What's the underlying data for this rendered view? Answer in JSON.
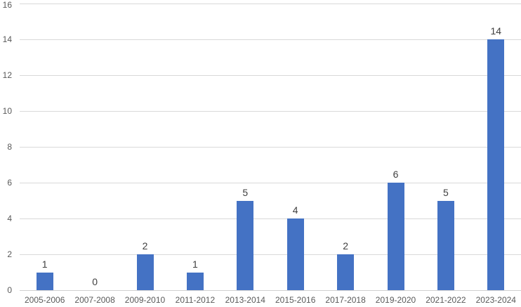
{
  "chart_data": {
    "type": "bar",
    "title": "",
    "xlabel": "",
    "ylabel": "",
    "categories": [
      "2005-2006",
      "2007-2008",
      "2009-2010",
      "2011-2012",
      "2013-2014",
      "2015-2016",
      "2017-2018",
      "2019-2020",
      "2021-2022",
      "2023-2024"
    ],
    "values": [
      1,
      0,
      2,
      1,
      5,
      4,
      2,
      6,
      5,
      14
    ],
    "ylim": [
      0,
      16
    ],
    "yticks": [
      0,
      2,
      4,
      6,
      8,
      10,
      12,
      14,
      16
    ],
    "grid": true,
    "legend": false,
    "data_labels_shown": true,
    "colors": {
      "bar": "#4472C4",
      "gridline": "#D9D9D9",
      "axis_line": "#D0D0D0",
      "axis_text": "#595959",
      "data_label_text": "#404040",
      "background": "#FFFFFF"
    }
  }
}
